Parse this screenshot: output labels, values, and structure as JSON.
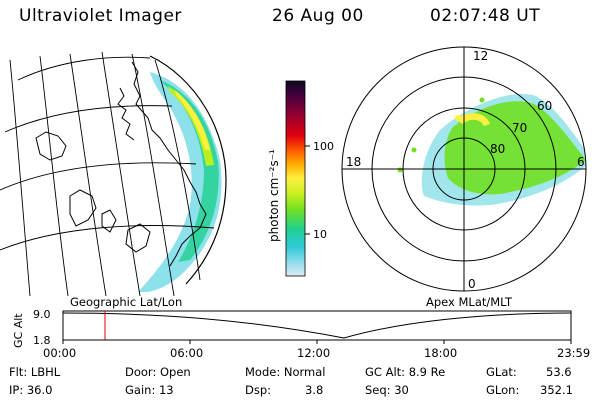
{
  "header": {
    "instrument": "Ultraviolet Imager",
    "date": "26 Aug 00",
    "time": "02:07:48 UT"
  },
  "panels": {
    "left_label": "Geographic Lat/Lon",
    "right_label": "Apex MLat/MLT"
  },
  "colorbar": {
    "unit_label": "photon cm⁻²s⁻¹",
    "tick_100": "100",
    "tick_10": "10",
    "colors": [
      "#0a0a20",
      "#4a0040",
      "#9a0030",
      "#e00010",
      "#ff6000",
      "#ffb000",
      "#fff040",
      "#c8f020",
      "#70e020",
      "#20d090",
      "#30c8d8",
      "#90dcec",
      "#dcecf4"
    ]
  },
  "polar": {
    "mlt_12": "12",
    "mlt_18": "18",
    "mlt_6": "6",
    "mlt_0": "0",
    "lat_60": "60",
    "lat_70": "70",
    "lat_80": "80"
  },
  "altitude_plot": {
    "ylabel": "GC Alt",
    "y_max": "9.0",
    "y_min": "1.8",
    "x_ticks": [
      "00:00",
      "06:00",
      "12:00",
      "18:00",
      "23:59"
    ],
    "marker_time": "02:07:48"
  },
  "status": {
    "filter": "Flt: LBHL",
    "ip": "IP: 36.0",
    "door": "Door: Open",
    "gain": "Gain: 13",
    "mode": "Mode: Normal",
    "dsp_label": "Dsp:",
    "dsp_value": "3.8",
    "gc_alt": "GC Alt: 8.9 Re",
    "seq": "Seq: 30",
    "glat_label": "GLat:",
    "glat_value": "53.6",
    "glon_label": "GLon:",
    "glon_value": "352.1"
  }
}
